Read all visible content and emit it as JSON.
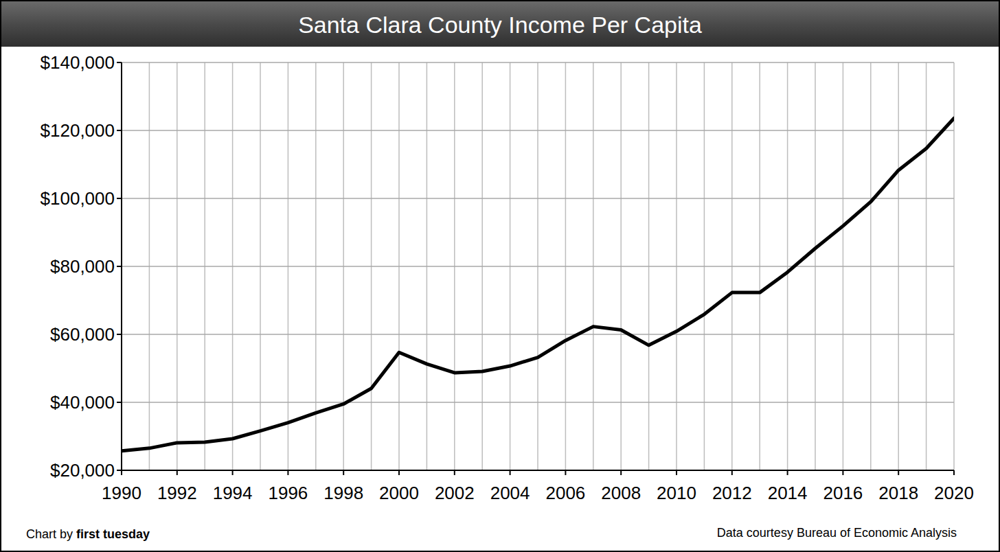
{
  "chart_data": {
    "type": "line",
    "title": "Santa Clara County Income Per Capita",
    "credit_prefix": "Chart by",
    "credit_name": "first tuesday",
    "source": "Data courtesy Bureau of Economic Analysis",
    "x": [
      1990,
      1991,
      1992,
      1993,
      1994,
      1995,
      1996,
      1997,
      1998,
      1999,
      2000,
      2001,
      2002,
      2003,
      2004,
      2005,
      2006,
      2007,
      2008,
      2009,
      2010,
      2011,
      2012,
      2013,
      2014,
      2015,
      2016,
      2017,
      2018,
      2019,
      2020
    ],
    "values": [
      25700,
      26500,
      28100,
      28300,
      29300,
      31600,
      34000,
      36900,
      39500,
      44100,
      54700,
      51300,
      48700,
      49100,
      50700,
      53200,
      58200,
      62300,
      61300,
      56800,
      60900,
      65900,
      72300,
      72300,
      78300,
      85300,
      91900,
      99000,
      108300,
      114700,
      123600
    ],
    "color": "#000000",
    "xlim": [
      1990,
      2020
    ],
    "xticks": [
      1990,
      1992,
      1994,
      1996,
      1998,
      2000,
      2002,
      2004,
      2006,
      2008,
      2010,
      2012,
      2014,
      2016,
      2018,
      2020
    ],
    "ylim": [
      20000,
      140000
    ],
    "yticks": [
      {
        "value": 20000,
        "label": "$20,000"
      },
      {
        "value": 40000,
        "label": "$40,000"
      },
      {
        "value": 60000,
        "label": "$60,000"
      },
      {
        "value": 80000,
        "label": "$80,000"
      },
      {
        "value": 100000,
        "label": "$100,000"
      },
      {
        "value": 120000,
        "label": "$120,000"
      },
      {
        "value": 140000,
        "label": "$140,000"
      }
    ],
    "grid": true
  }
}
